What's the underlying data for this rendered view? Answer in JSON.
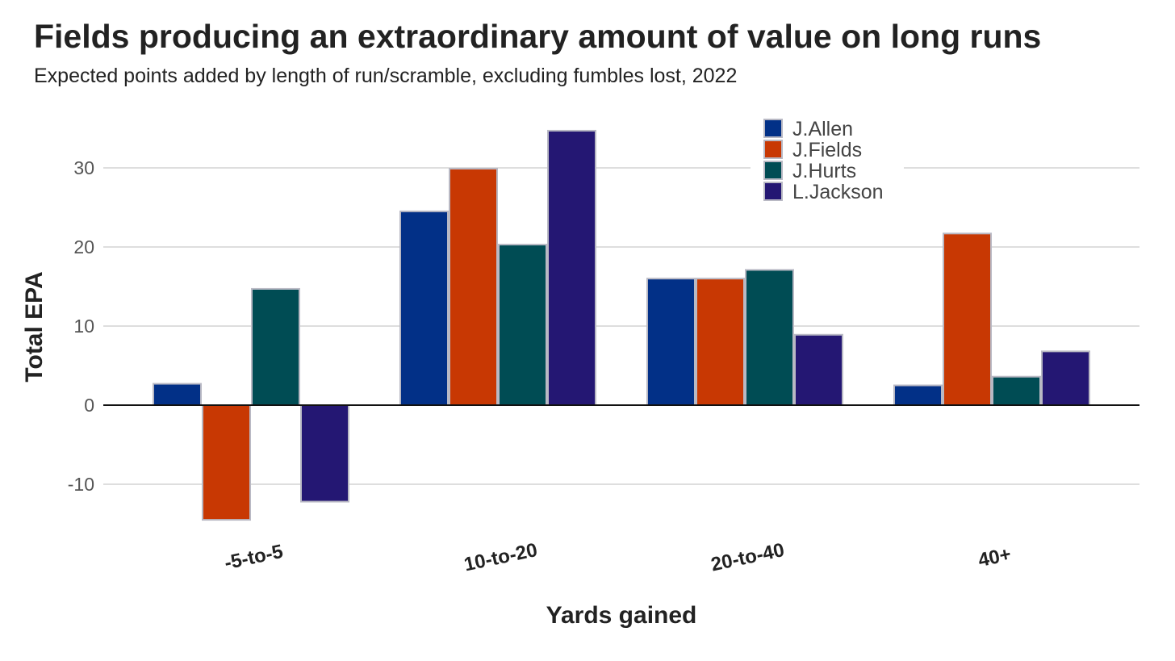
{
  "chart_data": {
    "type": "bar",
    "title": "Fields producing an extraordinary amount of value on long runs",
    "subtitle": "Expected points added by length of run/scramble, excluding fumbles lost, 2022",
    "xlabel": "Yards gained",
    "ylabel": "Total EPA",
    "categories": [
      "-5-to-5",
      "10-to-20",
      "20-to-40",
      "40+"
    ],
    "series": [
      {
        "name": "J.Allen",
        "color": "#023087",
        "values": [
          2.7,
          24.5,
          16.0,
          2.5
        ]
      },
      {
        "name": "J.Fields",
        "color": "#c83803",
        "values": [
          -14.5,
          29.9,
          16.0,
          21.7
        ]
      },
      {
        "name": "J.Hurts",
        "color": "#004c54",
        "values": [
          14.7,
          20.3,
          17.1,
          3.6
        ]
      },
      {
        "name": "L.Jackson",
        "color": "#241773",
        "values": [
          -12.2,
          34.7,
          8.9,
          6.8
        ]
      }
    ],
    "ylim": [
      -15,
      37
    ],
    "yticks": [
      -10,
      0,
      10,
      20,
      30
    ],
    "grid": true,
    "legend_position": "top-right"
  }
}
